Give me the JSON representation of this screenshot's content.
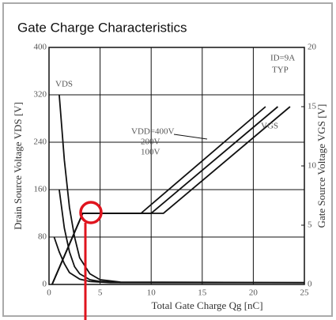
{
  "chart_data": {
    "type": "line",
    "title": "Gate Charge Characteristics",
    "xlabel": "Total Gate Charge  Qg [nC]",
    "ylabel": "Drain Source Voltage VDS [V]",
    "y2label": "Gate Source Voltage VGS [V]",
    "xlim": [
      0,
      25
    ],
    "xticks": [
      0,
      5,
      10,
      15,
      20,
      25
    ],
    "ylim": [
      0,
      400
    ],
    "yticks": [
      0,
      80,
      160,
      240,
      320,
      400
    ],
    "y2lim": [
      0,
      20
    ],
    "y2ticks": [
      0,
      5,
      10,
      15,
      20
    ],
    "grid": true,
    "annotations": [
      "ID=9A",
      "TYP",
      "VDS",
      "VGS"
    ],
    "series": [
      {
        "color": "#111111",
        "x": [
          1,
          1.5,
          2,
          2.5,
          3,
          4,
          5,
          7,
          25
        ],
        "values": [
          320,
          210,
          130,
          80,
          45,
          18,
          8,
          4,
          3
        ]
      },
      {
        "color": "#111111",
        "x": [
          1,
          1.5,
          2,
          2.5,
          3,
          4,
          5,
          7,
          25
        ],
        "values": [
          160,
          95,
          55,
          30,
          18,
          8,
          5,
          3,
          3
        ]
      },
      {
        "color": "#111111",
        "x": [
          0.5,
          1,
          1.5,
          2,
          3,
          4,
          6,
          25
        ],
        "values": [
          80,
          55,
          35,
          20,
          9,
          5,
          3,
          3
        ]
      },
      {
        "name": "VDD=400V",
        "color": "#111111",
        "axis": "y2",
        "x": [
          0.3,
          3.3,
          11.2,
          23.6
        ],
        "values": [
          0,
          6,
          6,
          15
        ]
      },
      {
        "name": "200V",
        "color": "#111111",
        "axis": "y2",
        "x": [
          0.3,
          3.3,
          10,
          22.4
        ],
        "values": [
          0,
          6,
          6,
          15
        ]
      },
      {
        "name": "100V",
        "color": "#111111",
        "axis": "y2",
        "x": [
          0.3,
          3.3,
          9,
          21.2
        ],
        "values": [
          0,
          6,
          6,
          15
        ]
      }
    ]
  }
}
